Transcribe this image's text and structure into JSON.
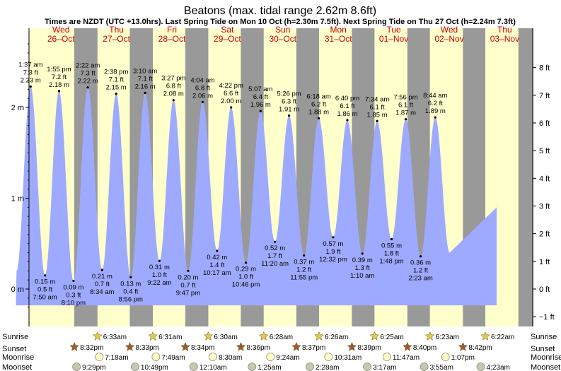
{
  "chart_data": {
    "type": "area",
    "title": "Beatons (max. tidal range 2.62m 8.6ft)",
    "subtitle": "Times are NZDT (UTC +13.0hrs). Last Spring Tide on Mon 10 Oct (h=2.30m 7.5ft). Next Spring Tide on Thu 27 Oct (h=2.24m 7.3ft)",
    "ylim_m": [
      -0.3,
      2.75
    ],
    "y_ticks_m": [
      "2 m",
      "1 m",
      "0 m"
    ],
    "y_ticks_ft": [
      "8 ft",
      "7 ft",
      "6 ft",
      "5 ft",
      "4 ft",
      "3 ft",
      "2 ft",
      "1 ft",
      "0 ft",
      "−1 ft"
    ],
    "days": [
      {
        "dow": "Wed",
        "date": "26–Oct"
      },
      {
        "dow": "Thu",
        "date": "27–Oct"
      },
      {
        "dow": "Fri",
        "date": "28–Oct"
      },
      {
        "dow": "Sat",
        "date": "29–Oct"
      },
      {
        "dow": "Sun",
        "date": "30–Oct"
      },
      {
        "dow": "Mon",
        "date": "31–Oct"
      },
      {
        "dow": "Tue",
        "date": "01–Nov"
      },
      {
        "dow": "Wed",
        "date": "02–Nov"
      },
      {
        "dow": "Thu",
        "date": "03–Nov"
      }
    ],
    "tides": [
      {
        "type": "high",
        "time": "1:37 am",
        "ft": "7.3 ft",
        "m": 2.23,
        "m_label": "2.23 m"
      },
      {
        "type": "low",
        "time": "7:50 am",
        "ft": "0.5 ft",
        "m": 0.15,
        "m_label": "0.15 m"
      },
      {
        "type": "high",
        "time": "1:55 pm",
        "ft": "7.2 ft",
        "m": 2.18,
        "m_label": "2.18 m"
      },
      {
        "type": "low",
        "time": "8:10 pm",
        "ft": "0.3 ft",
        "m": 0.09,
        "m_label": "0.09 m"
      },
      {
        "type": "high",
        "time": "2:22 am",
        "ft": "7.3 ft",
        "m": 2.22,
        "m_label": "2.22 m"
      },
      {
        "type": "low",
        "time": "8:34 am",
        "ft": "0.7 ft",
        "m": 0.21,
        "m_label": "0.21 m"
      },
      {
        "type": "high",
        "time": "2:38 pm",
        "ft": "7.1 ft",
        "m": 2.15,
        "m_label": "2.15 m"
      },
      {
        "type": "low",
        "time": "8:56 pm",
        "ft": "0.4 ft",
        "m": 0.13,
        "m_label": "0.13 m"
      },
      {
        "type": "high",
        "time": "3:10 am",
        "ft": "7.1 ft",
        "m": 2.16,
        "m_label": "2.16 m"
      },
      {
        "type": "low",
        "time": "9:22 am",
        "ft": "1.0 ft",
        "m": 0.31,
        "m_label": "0.31 m"
      },
      {
        "type": "high",
        "time": "3:27 pm",
        "ft": "6.8 ft",
        "m": 2.08,
        "m_label": "2.08 m"
      },
      {
        "type": "low",
        "time": "9:47 pm",
        "ft": "0.7 ft",
        "m": 0.2,
        "m_label": "0.20 m"
      },
      {
        "type": "high",
        "time": "4:04 am",
        "ft": "6.8 ft",
        "m": 2.06,
        "m_label": "2.06 m"
      },
      {
        "type": "low",
        "time": "10:17 am",
        "ft": "1.4 ft",
        "m": 0.42,
        "m_label": "0.42 m"
      },
      {
        "type": "high",
        "time": "4:22 pm",
        "ft": "6.6 ft",
        "m": 2.0,
        "m_label": "2.00 m"
      },
      {
        "type": "low",
        "time": "10:46 pm",
        "ft": "1.0 ft",
        "m": 0.29,
        "m_label": "0.29 m"
      },
      {
        "type": "high",
        "time": "5:07 am",
        "ft": "6.4 ft",
        "m": 1.96,
        "m_label": "1.96 m"
      },
      {
        "type": "low",
        "time": "11:20 am",
        "ft": "1.7 ft",
        "m": 0.52,
        "m_label": "0.52 m"
      },
      {
        "type": "high",
        "time": "5:26 pm",
        "ft": "6.3 ft",
        "m": 1.91,
        "m_label": "1.91 m"
      },
      {
        "type": "low",
        "time": "11:55 pm",
        "ft": "1.2 ft",
        "m": 0.37,
        "m_label": "0.37 m"
      },
      {
        "type": "high",
        "time": "6:18 am",
        "ft": "6.2 ft",
        "m": 1.88,
        "m_label": "1.88 m"
      },
      {
        "type": "low",
        "time": "12:32 pm",
        "ft": "1.9 ft",
        "m": 0.57,
        "m_label": "0.57 m"
      },
      {
        "type": "high",
        "time": "6:40 pm",
        "ft": "6.1 ft",
        "m": 1.86,
        "m_label": "1.86 m"
      },
      {
        "type": "low",
        "time": "1:10 am",
        "ft": "1.3 ft",
        "m": 0.39,
        "m_label": "0.39 m"
      },
      {
        "type": "high",
        "time": "7:34 am",
        "ft": "6.1 ft",
        "m": 1.85,
        "m_label": "1.85 m"
      },
      {
        "type": "low",
        "time": "1:48 pm",
        "ft": "1.8 ft",
        "m": 0.55,
        "m_label": "0.55 m"
      },
      {
        "type": "high",
        "time": "7:56 pm",
        "ft": "6.1 ft",
        "m": 1.87,
        "m_label": "1.87 m"
      },
      {
        "type": "low",
        "time": "2:23 am",
        "ft": "1.2 ft",
        "m": 0.36,
        "m_label": "0.36 m"
      },
      {
        "type": "high",
        "time": "8:44 am",
        "ft": "6.2 ft",
        "m": 1.89,
        "m_label": "1.89 m"
      }
    ]
  },
  "rows": {
    "sunrise_label": "Sunrise",
    "sunset_label": "Sunset",
    "moonrise_label": "Moonrise",
    "moonset_label": "Moonset",
    "sunrise": [
      "6:33am",
      "6:31am",
      "6:30am",
      "6:28am",
      "6:26am",
      "6:25am",
      "6:23am",
      "6:22am"
    ],
    "sunset": [
      "8:32pm",
      "8:33pm",
      "8:34pm",
      "8:36pm",
      "8:37pm",
      "8:39pm",
      "8:40pm",
      "8:42pm"
    ],
    "moonrise": [
      "7:18am",
      "7:49am",
      "8:30am",
      "9:24am",
      "10:31am",
      "11:47am",
      "1:07pm"
    ],
    "moonset": [
      "9:29pm",
      "10:49pm",
      "12:10am",
      "1:25am",
      "2:28am",
      "3:17am",
      "3:55am",
      "4:23am"
    ]
  },
  "colors": {
    "day_band": "#ffffcc",
    "night_band": "#999999",
    "water": "#9eaaff",
    "day_label": "#cc0000",
    "sun_star": "#e8c84a",
    "sunset_star": "#9c5a30",
    "moon": "#ffffcc",
    "moonset": "#c8c8b0"
  }
}
